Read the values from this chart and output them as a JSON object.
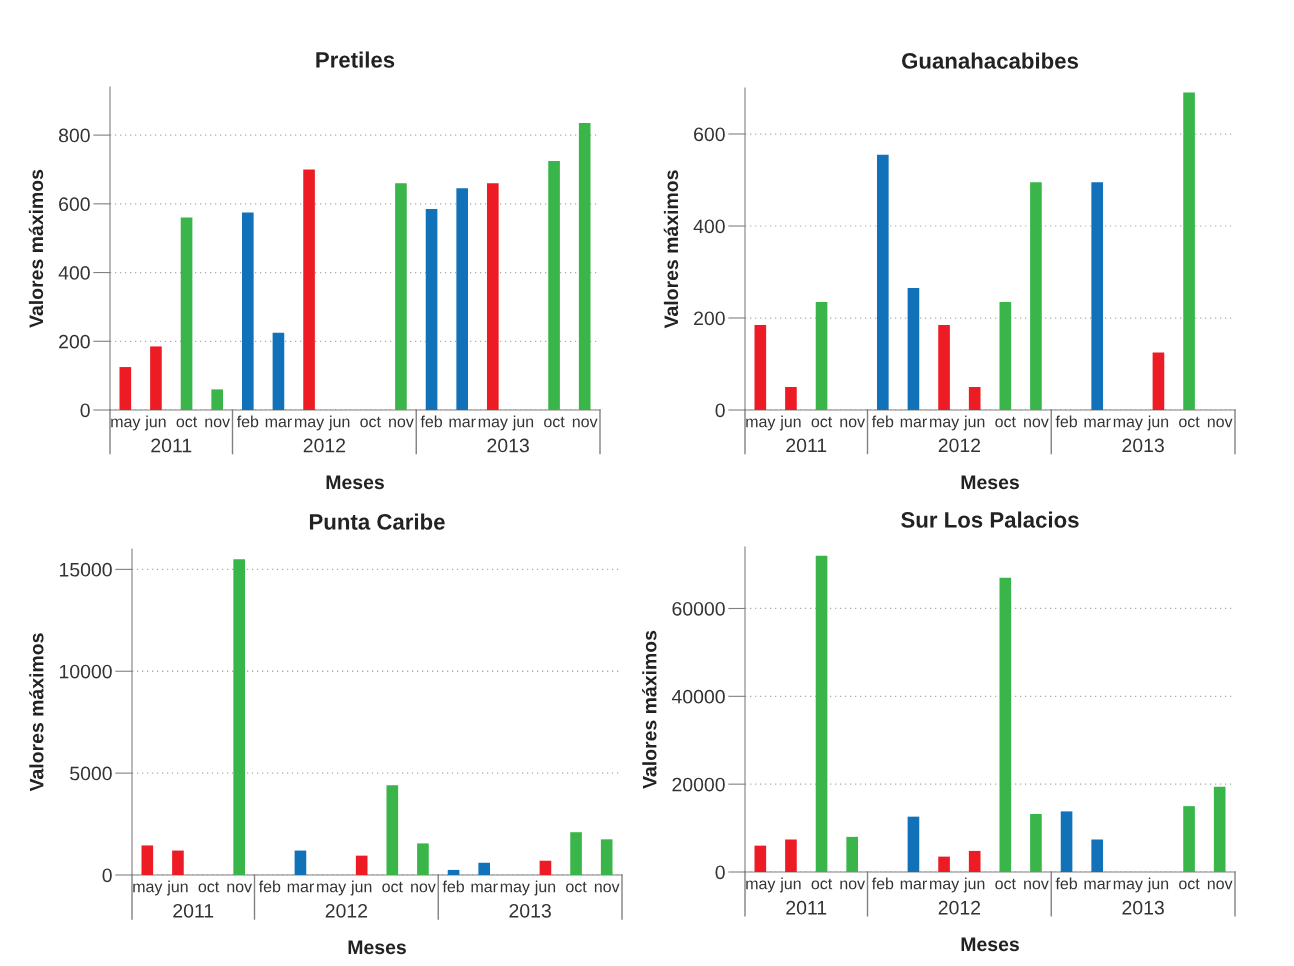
{
  "chart_data": [
    {
      "type": "bar",
      "title": "Pretiles",
      "xlabel": "Meses",
      "ylabel": "Valores máximos",
      "categories": [
        "may",
        "jun",
        "oct",
        "nov",
        "feb",
        "mar",
        "may",
        "jun",
        "oct",
        "nov",
        "feb",
        "mar",
        "may",
        "jun",
        "oct",
        "nov"
      ],
      "values": [
        125,
        185,
        560,
        60,
        575,
        225,
        700,
        null,
        null,
        660,
        585,
        645,
        660,
        null,
        725,
        835
      ],
      "colors": [
        "#ed1c24",
        "#ed1c24",
        "#3ab54a",
        "#3ab54a",
        "#1172ba",
        "#1172ba",
        "#ed1c24",
        "#ed1c24",
        "#3ab54a",
        "#3ab54a",
        "#1172ba",
        "#1172ba",
        "#ed1c24",
        "#ed1c24",
        "#3ab54a",
        "#3ab54a"
      ],
      "ylim": [
        0,
        940
      ],
      "yticks": [
        0,
        200,
        400,
        600,
        800
      ],
      "grid": "y",
      "annotations": [
        "2011",
        "2012",
        "2013"
      ]
    },
    {
      "type": "bar",
      "title": "Guanahacabibes",
      "xlabel": "Meses",
      "ylabel": "Valores máximos",
      "categories": [
        "may",
        "jun",
        "oct",
        "nov",
        "feb",
        "mar",
        "may",
        "jun",
        "oct",
        "nov",
        "feb",
        "mar",
        "may",
        "jun",
        "oct",
        "nov"
      ],
      "values": [
        185,
        50,
        235,
        null,
        555,
        265,
        185,
        50,
        235,
        495,
        null,
        495,
        null,
        125,
        690,
        null
      ],
      "colors": [
        "#ed1c24",
        "#ed1c24",
        "#3ab54a",
        "#3ab54a",
        "#1172ba",
        "#1172ba",
        "#ed1c24",
        "#ed1c24",
        "#3ab54a",
        "#3ab54a",
        "#1172ba",
        "#1172ba",
        "#ed1c24",
        "#ed1c24",
        "#3ab54a",
        "#3ab54a"
      ],
      "ylim": [
        0,
        700
      ],
      "yticks": [
        0,
        200,
        400,
        600
      ],
      "grid": "y",
      "annotations": [
        "2011",
        "2012",
        "2013"
      ]
    },
    {
      "type": "bar",
      "title": "Punta Caribe",
      "xlabel": "Meses",
      "ylabel": "Valores máximos",
      "categories": [
        "may",
        "jun",
        "oct",
        "nov",
        "feb",
        "mar",
        "may",
        "jun",
        "oct",
        "nov",
        "feb",
        "mar",
        "may",
        "jun",
        "oct",
        "nov"
      ],
      "values": [
        1450,
        1200,
        null,
        15500,
        null,
        1200,
        null,
        950,
        4400,
        1550,
        250,
        600,
        null,
        700,
        2100,
        1750
      ],
      "colors": [
        "#ed1c24",
        "#ed1c24",
        "#3ab54a",
        "#3ab54a",
        "#1172ba",
        "#1172ba",
        "#ed1c24",
        "#ed1c24",
        "#3ab54a",
        "#3ab54a",
        "#1172ba",
        "#1172ba",
        "#ed1c24",
        "#ed1c24",
        "#3ab54a",
        "#3ab54a"
      ],
      "ylim": [
        0,
        16000
      ],
      "yticks": [
        0,
        5000,
        10000,
        15000
      ],
      "grid": "y",
      "annotations": [
        "2011",
        "2012",
        "2013"
      ]
    },
    {
      "type": "bar",
      "title": "Sur Los Palacios",
      "xlabel": "Meses",
      "ylabel": "Valores máximos",
      "categories": [
        "may",
        "jun",
        "oct",
        "nov",
        "feb",
        "mar",
        "may",
        "jun",
        "oct",
        "nov",
        "feb",
        "mar",
        "may",
        "jun",
        "oct",
        "nov"
      ],
      "values": [
        6000,
        7400,
        72000,
        8000,
        null,
        12600,
        3500,
        4800,
        67000,
        13200,
        13800,
        7400,
        null,
        null,
        15000,
        19400
      ],
      "colors": [
        "#ed1c24",
        "#ed1c24",
        "#3ab54a",
        "#3ab54a",
        "#1172ba",
        "#1172ba",
        "#ed1c24",
        "#ed1c24",
        "#3ab54a",
        "#3ab54a",
        "#1172ba",
        "#1172ba",
        "#ed1c24",
        "#ed1c24",
        "#3ab54a",
        "#3ab54a"
      ],
      "ylim": [
        0,
        74000
      ],
      "yticks": [
        0,
        20000,
        40000,
        60000
      ],
      "grid": "y",
      "annotations": [
        "2011",
        "2012",
        "2013"
      ]
    }
  ]
}
